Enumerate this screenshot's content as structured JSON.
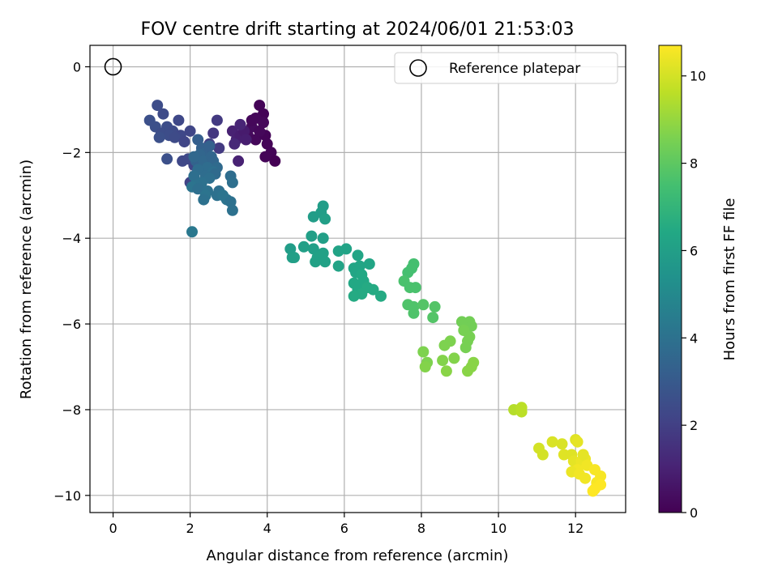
{
  "chart_data": {
    "type": "scatter",
    "title": "FOV centre drift starting at 2024/06/01 21:53:03",
    "xlabel": "Angular distance from reference (arcmin)",
    "ylabel": "Rotation from reference (arcmin)",
    "xlim": [
      -0.6,
      13.3
    ],
    "ylim": [
      -10.4,
      0.5
    ],
    "xticks": [
      0,
      2,
      4,
      6,
      8,
      10,
      12
    ],
    "yticks": [
      0,
      -2,
      -4,
      -6,
      -8,
      -10
    ],
    "grid": true,
    "legend": {
      "position": "top-right",
      "entries": [
        "Reference platepar"
      ]
    },
    "reference_point": {
      "x": 0,
      "y": 0
    },
    "colorbar": {
      "label": "Hours from first FF file",
      "colormap": "viridis",
      "range": [
        0,
        10.7
      ],
      "ticks": [
        0,
        2,
        4,
        6,
        8,
        10
      ]
    },
    "points": [
      [
        3.8,
        -0.9,
        0.1
      ],
      [
        3.9,
        -1.1,
        0.1
      ],
      [
        3.7,
        -1.2,
        0.2
      ],
      [
        3.9,
        -1.3,
        0.2
      ],
      [
        3.6,
        -1.4,
        0.3
      ],
      [
        3.5,
        -1.6,
        0.3
      ],
      [
        3.7,
        -1.7,
        0.2
      ],
      [
        3.95,
        -1.6,
        0.1
      ],
      [
        4.0,
        -1.8,
        0.1
      ],
      [
        4.1,
        -2.0,
        0.1
      ],
      [
        4.2,
        -2.2,
        0.0
      ],
      [
        3.95,
        -2.1,
        0.1
      ],
      [
        3.8,
        -1.5,
        0.2
      ],
      [
        3.6,
        -1.25,
        0.2
      ],
      [
        3.1,
        -1.5,
        1.0
      ],
      [
        3.2,
        -1.7,
        1.0
      ],
      [
        3.3,
        -1.6,
        0.9
      ],
      [
        3.4,
        -1.5,
        0.8
      ],
      [
        3.3,
        -1.35,
        1.1
      ],
      [
        3.15,
        -1.8,
        1.2
      ],
      [
        3.25,
        -2.2,
        1.0
      ],
      [
        3.45,
        -1.7,
        0.9
      ],
      [
        2.7,
        -1.25,
        1.8
      ],
      [
        2.6,
        -1.55,
        1.7
      ],
      [
        2.75,
        -1.9,
        1.8
      ],
      [
        2.5,
        -1.8,
        2.0
      ],
      [
        1.15,
        -0.9,
        2.5
      ],
      [
        1.3,
        -1.1,
        2.4
      ],
      [
        1.7,
        -1.25,
        2.3
      ],
      [
        0.95,
        -1.25,
        2.6
      ],
      [
        1.1,
        -1.4,
        2.6
      ],
      [
        1.4,
        -1.4,
        2.5
      ],
      [
        1.55,
        -1.5,
        2.4
      ],
      [
        1.25,
        -1.55,
        2.5
      ],
      [
        1.75,
        -1.6,
        2.3
      ],
      [
        1.45,
        -1.6,
        2.5
      ],
      [
        1.6,
        -1.65,
        2.4
      ],
      [
        1.2,
        -1.65,
        2.6
      ],
      [
        1.85,
        -1.75,
        2.2
      ],
      [
        2.0,
        -1.5,
        2.2
      ],
      [
        1.4,
        -2.15,
        2.6
      ],
      [
        1.8,
        -2.2,
        2.3
      ],
      [
        1.95,
        -2.15,
        2.3
      ],
      [
        2.1,
        -2.3,
        2.2
      ],
      [
        2.0,
        -2.7,
        2.1
      ],
      [
        2.2,
        -1.7,
        3.2
      ],
      [
        2.3,
        -1.9,
        3.3
      ],
      [
        2.4,
        -2.0,
        3.4
      ],
      [
        2.5,
        -1.85,
        3.3
      ],
      [
        2.25,
        -2.05,
        3.5
      ],
      [
        2.15,
        -2.2,
        3.4
      ],
      [
        2.35,
        -2.2,
        3.6
      ],
      [
        2.55,
        -2.1,
        3.5
      ],
      [
        2.6,
        -2.2,
        3.5
      ],
      [
        2.1,
        -2.1,
        3.6
      ],
      [
        2.45,
        -2.35,
        3.8
      ],
      [
        2.7,
        -2.35,
        3.7
      ],
      [
        2.2,
        -2.4,
        3.8
      ],
      [
        2.6,
        -2.45,
        3.9
      ],
      [
        2.4,
        -2.55,
        3.8
      ],
      [
        2.65,
        -2.5,
        3.7
      ],
      [
        2.1,
        -2.55,
        3.9
      ],
      [
        2.5,
        -2.6,
        3.9
      ],
      [
        2.3,
        -2.7,
        4.0
      ],
      [
        2.15,
        -2.75,
        4.0
      ],
      [
        2.05,
        -2.8,
        4.1
      ],
      [
        2.2,
        -2.85,
        3.9
      ],
      [
        2.45,
        -2.9,
        4.0
      ],
      [
        2.4,
        -3.0,
        4.1
      ],
      [
        2.35,
        -3.1,
        4.0
      ],
      [
        2.75,
        -2.9,
        3.9
      ],
      [
        2.7,
        -3.0,
        4.0
      ],
      [
        2.85,
        -3.0,
        4.1
      ],
      [
        2.95,
        -3.1,
        4.1
      ],
      [
        3.05,
        -3.15,
        4.0
      ],
      [
        3.05,
        -2.55,
        3.8
      ],
      [
        3.1,
        -2.7,
        3.9
      ],
      [
        3.1,
        -3.35,
        4.0
      ],
      [
        2.05,
        -3.85,
        4.3
      ],
      [
        5.45,
        -3.25,
        5.9
      ],
      [
        5.4,
        -3.4,
        5.9
      ],
      [
        5.5,
        -3.55,
        6.0
      ],
      [
        5.2,
        -3.5,
        5.9
      ],
      [
        5.15,
        -3.95,
        6.0
      ],
      [
        5.45,
        -4.0,
        6.0
      ],
      [
        4.6,
        -4.25,
        5.9
      ],
      [
        4.95,
        -4.2,
        6.0
      ],
      [
        5.2,
        -4.25,
        6.0
      ],
      [
        5.45,
        -4.35,
        6.1
      ],
      [
        5.3,
        -4.45,
        6.1
      ],
      [
        5.5,
        -4.55,
        6.1
      ],
      [
        5.25,
        -4.55,
        6.1
      ],
      [
        4.65,
        -4.45,
        6.0
      ],
      [
        4.7,
        -4.45,
        6.0
      ],
      [
        5.85,
        -4.3,
        6.2
      ],
      [
        6.05,
        -4.25,
        6.2
      ],
      [
        5.85,
        -4.65,
        6.2
      ],
      [
        6.35,
        -4.4,
        6.3
      ],
      [
        6.25,
        -4.7,
        6.3
      ],
      [
        6.4,
        -4.65,
        6.3
      ],
      [
        6.65,
        -4.6,
        6.3
      ],
      [
        6.3,
        -4.8,
        6.3
      ],
      [
        6.45,
        -4.85,
        6.4
      ],
      [
        6.5,
        -5.0,
        6.4
      ],
      [
        6.25,
        -5.05,
        6.4
      ],
      [
        6.35,
        -5.2,
        6.4
      ],
      [
        6.75,
        -5.2,
        6.5
      ],
      [
        6.6,
        -5.15,
        6.5
      ],
      [
        6.45,
        -5.3,
        6.5
      ],
      [
        6.25,
        -5.35,
        6.5
      ],
      [
        6.95,
        -5.35,
        6.5
      ],
      [
        7.8,
        -4.6,
        7.5
      ],
      [
        7.75,
        -4.7,
        7.5
      ],
      [
        7.65,
        -4.8,
        7.5
      ],
      [
        7.55,
        -5.0,
        7.6
      ],
      [
        7.7,
        -5.15,
        7.6
      ],
      [
        7.85,
        -5.15,
        7.6
      ],
      [
        7.65,
        -5.55,
        7.7
      ],
      [
        7.8,
        -5.6,
        7.7
      ],
      [
        7.8,
        -5.75,
        7.7
      ],
      [
        8.05,
        -5.55,
        7.8
      ],
      [
        8.35,
        -5.6,
        7.8
      ],
      [
        8.3,
        -5.85,
        7.8
      ],
      [
        9.05,
        -5.95,
        8.4
      ],
      [
        9.25,
        -5.95,
        8.4
      ],
      [
        9.3,
        -6.05,
        8.4
      ],
      [
        9.1,
        -6.15,
        8.5
      ],
      [
        9.25,
        -6.3,
        8.5
      ],
      [
        9.2,
        -6.4,
        8.5
      ],
      [
        9.15,
        -6.55,
        8.5
      ],
      [
        8.75,
        -6.4,
        8.6
      ],
      [
        8.6,
        -6.5,
        8.6
      ],
      [
        8.05,
        -6.65,
        8.6
      ],
      [
        8.15,
        -6.9,
        8.6
      ],
      [
        8.1,
        -7.0,
        8.7
      ],
      [
        8.55,
        -6.85,
        8.7
      ],
      [
        8.85,
        -6.8,
        8.7
      ],
      [
        9.35,
        -6.9,
        8.8
      ],
      [
        9.3,
        -7.0,
        8.8
      ],
      [
        9.2,
        -7.1,
        8.8
      ],
      [
        8.65,
        -7.1,
        8.8
      ],
      [
        10.4,
        -8.0,
        9.5
      ],
      [
        10.6,
        -7.95,
        9.6
      ],
      [
        10.6,
        -8.05,
        9.6
      ],
      [
        11.05,
        -8.9,
        10.0
      ],
      [
        11.15,
        -9.05,
        10.0
      ],
      [
        11.4,
        -8.75,
        10.1
      ],
      [
        11.65,
        -8.8,
        10.1
      ],
      [
        11.7,
        -9.05,
        10.2
      ],
      [
        11.9,
        -9.05,
        10.2
      ],
      [
        12.0,
        -8.7,
        10.2
      ],
      [
        12.05,
        -8.75,
        10.3
      ],
      [
        11.95,
        -9.2,
        10.3
      ],
      [
        12.15,
        -9.2,
        10.4
      ],
      [
        12.25,
        -9.15,
        10.4
      ],
      [
        12.2,
        -9.05,
        10.3
      ],
      [
        12.3,
        -9.3,
        10.5
      ],
      [
        12.05,
        -9.4,
        10.5
      ],
      [
        11.9,
        -9.45,
        10.4
      ],
      [
        12.1,
        -9.5,
        10.5
      ],
      [
        12.25,
        -9.6,
        10.5
      ],
      [
        12.5,
        -9.4,
        10.6
      ],
      [
        12.65,
        -9.55,
        10.6
      ],
      [
        12.55,
        -9.7,
        10.6
      ],
      [
        12.65,
        -9.75,
        10.7
      ],
      [
        12.45,
        -9.9,
        10.7
      ],
      [
        12.5,
        -9.85,
        10.7
      ]
    ]
  }
}
